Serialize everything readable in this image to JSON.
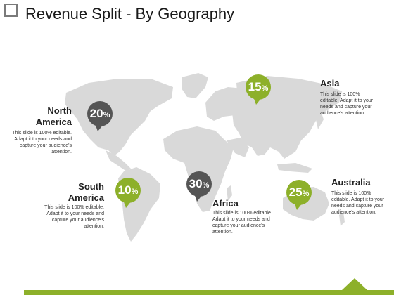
{
  "slide": {
    "title": "Revenue Split - By Geography"
  },
  "regions": [
    {
      "name": "North America",
      "value": "20",
      "unit": "%",
      "color": "#555555",
      "desc": "This slide is 100% editable. Adapt it to your needs and capture your audience's attention."
    },
    {
      "name": "South America",
      "value": "10",
      "unit": "%",
      "color": "#8db02a",
      "desc": "This slide is 100% editable. Adapt it to your needs and capture your audience's attention."
    },
    {
      "name": "Africa",
      "value": "30",
      "unit": "%",
      "color": "#555555",
      "desc": "This slide is 100% editable. Adapt it to your needs and capture your audience's attention."
    },
    {
      "name": "Asia",
      "value": "15",
      "unit": "%",
      "color": "#8db02a",
      "desc": "This slide is 100% editable. Adapt it to your needs and capture your audience's attention."
    },
    {
      "name": "Australia",
      "value": "25",
      "unit": "%",
      "color": "#8db02a",
      "desc": "This slide is 100% editable. Adapt it to your needs and capture your audience's attention."
    }
  ],
  "colors": {
    "accent_green": "#8db02a",
    "dark_gray": "#555555",
    "map_gray": "#d9d9d9"
  }
}
